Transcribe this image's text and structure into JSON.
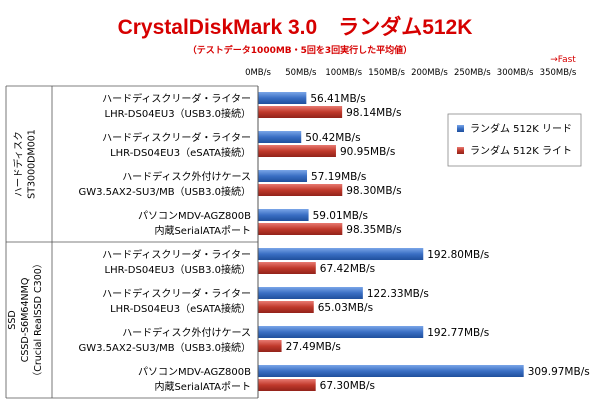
{
  "chart_data": {
    "type": "bar",
    "orientation": "horizontal",
    "title": "CrystalDiskMark 3.0　ランダム512K",
    "subtitle": "（テストデータ1000MB・5回を3回実行した平均値）",
    "fast_label": "→Fast",
    "xlim": [
      0,
      350
    ],
    "x_ticks": [
      "0MB/s",
      "50MB/s",
      "100MB/s",
      "150MB/s",
      "200MB/s",
      "250MB/s",
      "300MB/s",
      "350MB/s"
    ],
    "grid": false,
    "legend_position": "right",
    "value_suffix": "MB/s",
    "categories": [
      {
        "line1": "ハードディスクリーダ・ライター",
        "line2": "LHR-DS04EU3（USB3.0接続）"
      },
      {
        "line1": "ハードディスクリーダ・ライター",
        "line2": "LHR-DS04EU3（eSATA接続）"
      },
      {
        "line1": "ハードディスク外付けケース",
        "line2": "GW3.5AX2-SU3/MB（USB3.0接続）"
      },
      {
        "line1": "パソコンMDV-AGZ800B",
        "line2": "内蔵SerialATAポート"
      },
      {
        "line1": "ハードディスクリーダ・ライター",
        "line2": "LHR-DS04EU3（USB3.0接続）"
      },
      {
        "line1": "ハードディスクリーダ・ライター",
        "line2": "LHR-DS04EU3（eSATA接続）"
      },
      {
        "line1": "ハードディスク外付けケース",
        "line2": "GW3.5AX2-SU3/MB（USB3.0接続）"
      },
      {
        "line1": "パソコンMDV-AGZ800B",
        "line2": "内蔵SerialATAポート"
      }
    ],
    "groups": [
      {
        "lines": [
          "ハードディスク",
          "ST3000DM001"
        ],
        "start": 0,
        "end": 3
      },
      {
        "lines": [
          "SSD",
          "CSSD-S6M64NMQ",
          "（Crucial RealSSD C300）"
        ],
        "start": 4,
        "end": 7
      }
    ],
    "series": [
      {
        "name": "ランダム 512K リード",
        "color": "#3a6fc4",
        "values": [
          56.41,
          50.42,
          57.19,
          59.01,
          192.8,
          122.33,
          192.77,
          309.97
        ]
      },
      {
        "name": "ランダム 512K ライト",
        "color": "#c0392b",
        "values": [
          98.14,
          90.95,
          98.3,
          98.35,
          67.42,
          65.03,
          27.49,
          67.3
        ]
      }
    ]
  }
}
